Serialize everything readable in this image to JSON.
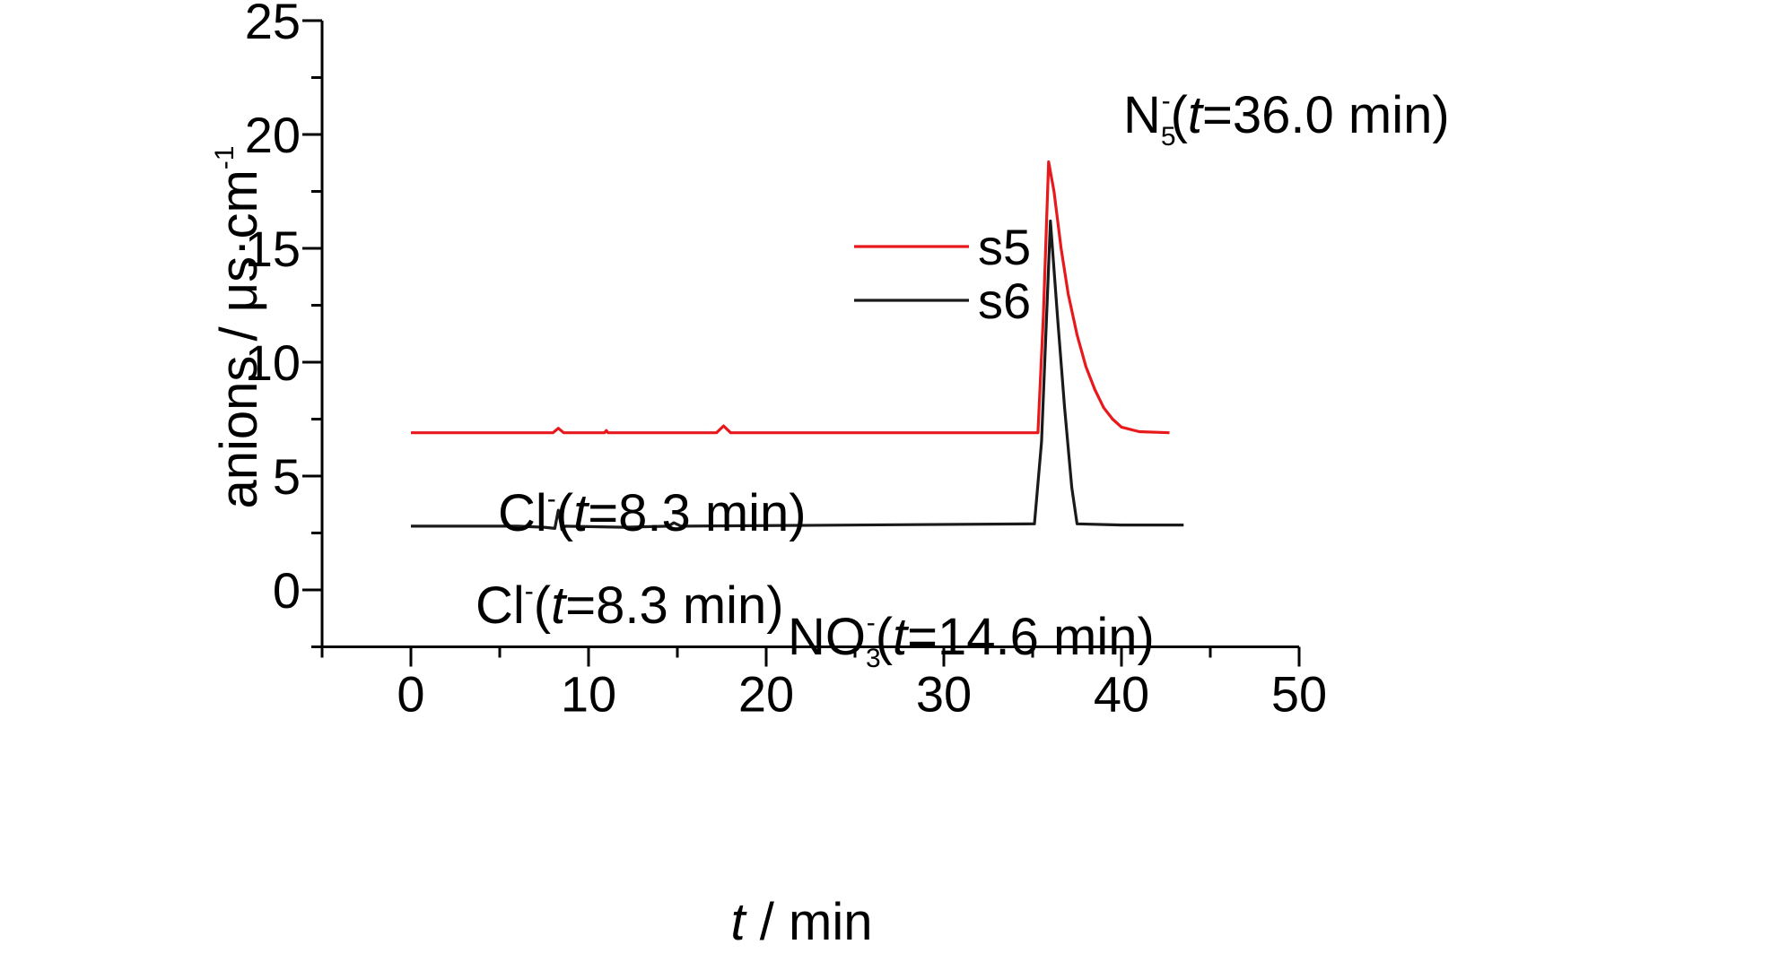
{
  "chart_data": {
    "type": "line",
    "xlabel": {
      "italic": "t",
      "text": " / min"
    },
    "ylabel": "anions / μs·cm",
    "ylabel_sup": "-1",
    "xlim": [
      -5,
      50
    ],
    "ylim": [
      -2.5,
      25
    ],
    "x_ticks": [
      0,
      10,
      20,
      30,
      40,
      50
    ],
    "y_ticks": [
      0,
      5,
      10,
      15,
      20,
      25
    ],
    "grid": false,
    "legend_position": "upper-center",
    "series": [
      {
        "name": "s5",
        "color": "#e8191c",
        "points": [
          [
            0,
            6.9
          ],
          [
            8.0,
            6.9
          ],
          [
            8.3,
            7.1
          ],
          [
            8.6,
            6.9
          ],
          [
            10.9,
            6.9
          ],
          [
            11.0,
            7.0
          ],
          [
            11.1,
            6.9
          ],
          [
            17.2,
            6.9
          ],
          [
            17.6,
            7.2
          ],
          [
            18.0,
            6.9
          ],
          [
            35.3,
            6.9
          ],
          [
            35.6,
            12.0
          ],
          [
            35.9,
            18.8
          ],
          [
            36.2,
            17.5
          ],
          [
            36.6,
            15.0
          ],
          [
            37.0,
            13.0
          ],
          [
            37.5,
            11.2
          ],
          [
            38.0,
            9.8
          ],
          [
            38.5,
            8.8
          ],
          [
            39.0,
            8.0
          ],
          [
            39.5,
            7.5
          ],
          [
            40.0,
            7.15
          ],
          [
            41.0,
            6.95
          ],
          [
            42.7,
            6.9
          ]
        ]
      },
      {
        "name": "s6",
        "color": "#1a1a1a",
        "points": [
          [
            0,
            2.8
          ],
          [
            6.0,
            2.8
          ],
          [
            7.5,
            2.75
          ],
          [
            8.1,
            2.7
          ],
          [
            8.3,
            3.5
          ],
          [
            8.5,
            2.65
          ],
          [
            8.7,
            2.8
          ],
          [
            12.0,
            2.75
          ],
          [
            14.5,
            2.8
          ],
          [
            14.8,
            2.95
          ],
          [
            15.2,
            2.8
          ],
          [
            35.1,
            2.9
          ],
          [
            35.5,
            6.5
          ],
          [
            36.0,
            16.2
          ],
          [
            36.4,
            12.0
          ],
          [
            36.8,
            8.0
          ],
          [
            37.2,
            4.5
          ],
          [
            37.5,
            2.9
          ],
          [
            40.0,
            2.85
          ],
          [
            43.5,
            2.85
          ]
        ]
      }
    ],
    "annotations": [
      {
        "base": "N",
        "sub": "5",
        "sup": "-",
        "open": "(",
        "italic": "t",
        "rest": "=36.0 min)",
        "x": 36.0,
        "y": 22.2
      },
      {
        "base": "Cl",
        "sub": "",
        "sup": "-",
        "open": "(",
        "italic": "t",
        "rest": "=8.3 min)",
        "x": 8.3,
        "y": 8.2
      },
      {
        "base": "Cl",
        "sub": "",
        "sup": "-",
        "open": "(",
        "italic": "t",
        "rest": "=8.3 min)",
        "x": 8.3,
        "y": 5.0
      },
      {
        "base": "NO",
        "sub": "3",
        "sup": "-",
        "open": "(",
        "italic": "t",
        "rest": "=14.6 min)",
        "x": 14.6,
        "y": 3.9
      }
    ]
  }
}
